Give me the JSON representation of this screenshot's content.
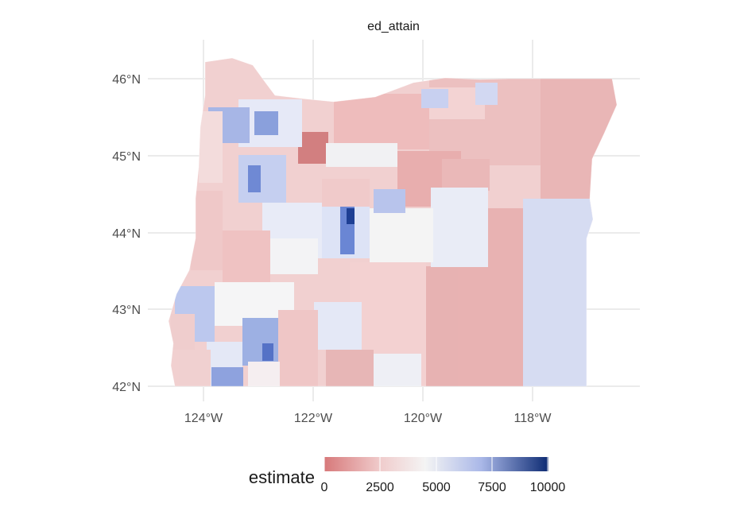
{
  "facet_title": "ed_attain",
  "legend": {
    "title": "estimate",
    "ticks": [
      "0",
      "2500",
      "5000",
      "7500",
      "10000"
    ]
  },
  "colors": {
    "low": "#d7797a",
    "mid_low": "#f0cccc",
    "mid": "#f4f4f4",
    "mid_high": "#aab8e8",
    "high": "#0d2b73",
    "grid": "#ebebeb",
    "axis_text": "#4d4d4d"
  },
  "chart_data": {
    "type": "choropleth",
    "region": "Oregon census tracts",
    "variable": "ed_attain",
    "fill_label": "estimate",
    "fill_range": [
      0,
      10000
    ],
    "fill_ticks": [
      0,
      2500,
      5000,
      7500,
      10000
    ],
    "x_axis": {
      "unit": "longitude",
      "ticks": [
        -124,
        -122,
        -120,
        -118
      ],
      "labels": [
        "124°W",
        "122°W",
        "120°W",
        "118°W"
      ]
    },
    "y_axis": {
      "unit": "latitude",
      "ticks": [
        42,
        43,
        44,
        45,
        46
      ],
      "labels": [
        "42°N",
        "43°N",
        "44°N",
        "45°N",
        "46°N"
      ]
    },
    "grid": true,
    "legend_position": "bottom"
  }
}
